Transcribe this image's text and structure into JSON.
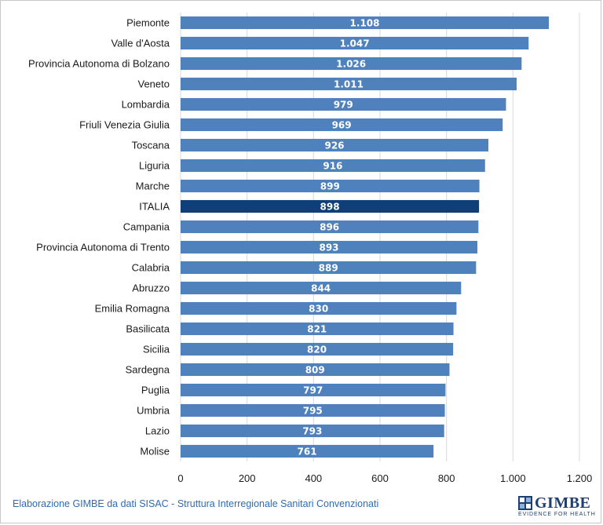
{
  "chart_data": {
    "type": "bar",
    "orientation": "horizontal",
    "categories": [
      "Piemonte",
      "Valle d'Aosta",
      "Provincia Autonoma di Bolzano",
      "Veneto",
      "Lombardia",
      "Friuli Venezia Giulia",
      "Toscana",
      "Liguria",
      "Marche",
      "ITALIA",
      "Campania",
      "Provincia Autonoma di Trento",
      "Calabria",
      "Abruzzo",
      "Emilia Romagna",
      "Basilicata",
      "Sicilia",
      "Sardegna",
      "Puglia",
      "Umbria",
      "Lazio",
      "Molise"
    ],
    "values": [
      1108,
      1047,
      1026,
      1011,
      979,
      969,
      926,
      916,
      899,
      898,
      896,
      893,
      889,
      844,
      830,
      821,
      820,
      809,
      797,
      795,
      793,
      761
    ],
    "value_labels": [
      "1.108",
      "1.047",
      "1.026",
      "1.011",
      "979",
      "969",
      "926",
      "916",
      "899",
      "898",
      "896",
      "893",
      "889",
      "844",
      "830",
      "821",
      "820",
      "809",
      "797",
      "795",
      "793",
      "761"
    ],
    "highlight": "ITALIA",
    "xlim": [
      0,
      1200
    ],
    "xticks": [
      0,
      200,
      400,
      600,
      800,
      1000,
      1200
    ],
    "xtick_labels": [
      "0",
      "200",
      "400",
      "600",
      "800",
      "1.000",
      "1.200"
    ],
    "grid": "vertical",
    "colors": {
      "bar": "#4f81bd",
      "bar_highlight": "#0e3f78",
      "grid": "#d9d9d9"
    },
    "title": "",
    "xlabel": "",
    "ylabel": ""
  },
  "footer": {
    "source_note": "Elaborazione GIMBE da dati SISAC - Struttura Interregionale Sanitari Convenzionati"
  },
  "logo": {
    "wordmark": "GIMBE",
    "tagline": "EVIDENCE FOR HEALTH",
    "color": "#1f3f73"
  }
}
